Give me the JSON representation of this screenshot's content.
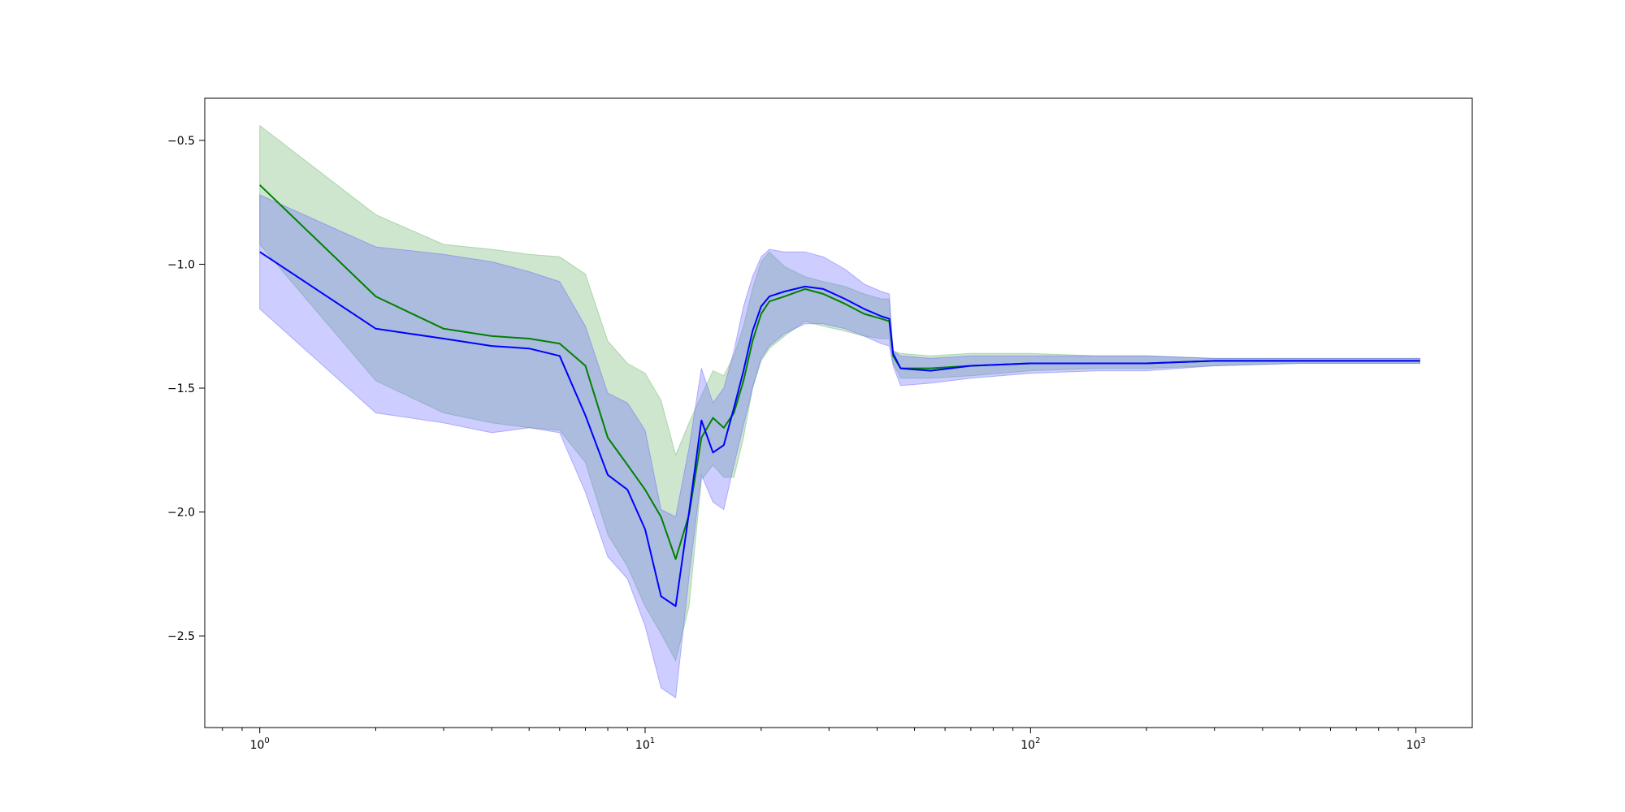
{
  "chart_data": {
    "type": "line",
    "title": "",
    "xlabel": "",
    "ylabel": "",
    "x_scale": "log",
    "xlim": [
      0.72,
      1400
    ],
    "ylim": [
      -2.87,
      -0.33
    ],
    "grid": false,
    "legend": "none",
    "x_ticks": [
      {
        "value": 1,
        "base": "10",
        "exp": "0"
      },
      {
        "value": 10,
        "base": "10",
        "exp": "1"
      },
      {
        "value": 100,
        "base": "10",
        "exp": "2"
      },
      {
        "value": 1000,
        "base": "10",
        "exp": "3"
      }
    ],
    "y_ticks": [
      {
        "value": -0.5,
        "label": "−0.5"
      },
      {
        "value": -1.0,
        "label": "−1.0"
      },
      {
        "value": -1.5,
        "label": "−1.5"
      },
      {
        "value": -2.0,
        "label": "−2.0"
      },
      {
        "value": -2.5,
        "label": "−2.5"
      }
    ],
    "x": [
      1,
      2,
      3,
      4,
      5,
      6,
      7,
      8,
      9,
      10,
      11,
      12,
      13,
      14,
      15,
      16,
      17,
      18,
      19,
      20,
      21,
      23,
      26,
      29,
      33,
      37,
      41,
      43,
      44,
      46,
      55,
      70,
      100,
      150,
      200,
      300,
      500,
      1024
    ],
    "series": [
      {
        "color": "#008000",
        "band_color": "#6ab46a",
        "values": [
          -0.68,
          -1.13,
          -1.26,
          -1.29,
          -1.3,
          -1.32,
          -1.41,
          -1.7,
          -1.81,
          -1.91,
          -2.02,
          -2.19,
          -2.01,
          -1.7,
          -1.62,
          -1.66,
          -1.6,
          -1.47,
          -1.31,
          -1.2,
          -1.15,
          -1.13,
          -1.1,
          -1.12,
          -1.16,
          -1.2,
          -1.22,
          -1.23,
          -1.37,
          -1.42,
          -1.42,
          -1.41,
          -1.4,
          -1.4,
          -1.4,
          -1.39,
          -1.39,
          -1.39
        ],
        "upper": [
          -0.44,
          -0.8,
          -0.92,
          -0.94,
          -0.96,
          -0.97,
          -1.04,
          -1.31,
          -1.4,
          -1.44,
          -1.55,
          -1.77,
          -1.64,
          -1.53,
          -1.43,
          -1.45,
          -1.37,
          -1.25,
          -1.1,
          -0.99,
          -0.95,
          -1.01,
          -1.05,
          -1.07,
          -1.09,
          -1.12,
          -1.14,
          -1.14,
          -1.35,
          -1.36,
          -1.37,
          -1.36,
          -1.36,
          -1.37,
          -1.37,
          -1.38,
          -1.38,
          -1.38
        ],
        "lower": [
          -0.92,
          -1.47,
          -1.6,
          -1.64,
          -1.66,
          -1.67,
          -1.8,
          -2.09,
          -2.22,
          -2.38,
          -2.49,
          -2.6,
          -2.38,
          -1.87,
          -1.81,
          -1.86,
          -1.86,
          -1.7,
          -1.5,
          -1.39,
          -1.34,
          -1.29,
          -1.23,
          -1.25,
          -1.27,
          -1.29,
          -1.3,
          -1.3,
          -1.4,
          -1.46,
          -1.46,
          -1.45,
          -1.43,
          -1.42,
          -1.42,
          -1.41,
          -1.4,
          -1.4
        ]
      },
      {
        "color": "#0000ff",
        "band_color": "#6666ff",
        "values": [
          -0.95,
          -1.26,
          -1.3,
          -1.33,
          -1.34,
          -1.37,
          -1.61,
          -1.85,
          -1.91,
          -2.07,
          -2.34,
          -2.38,
          -2.0,
          -1.63,
          -1.76,
          -1.73,
          -1.58,
          -1.43,
          -1.27,
          -1.17,
          -1.13,
          -1.11,
          -1.09,
          -1.1,
          -1.14,
          -1.18,
          -1.21,
          -1.22,
          -1.36,
          -1.42,
          -1.43,
          -1.41,
          -1.4,
          -1.4,
          -1.4,
          -1.39,
          -1.39,
          -1.39
        ],
        "upper": [
          -0.72,
          -0.93,
          -0.96,
          -0.99,
          -1.03,
          -1.07,
          -1.25,
          -1.52,
          -1.56,
          -1.67,
          -1.99,
          -2.02,
          -1.74,
          -1.42,
          -1.56,
          -1.5,
          -1.35,
          -1.17,
          -1.05,
          -0.97,
          -0.94,
          -0.95,
          -0.95,
          -0.97,
          -1.02,
          -1.08,
          -1.11,
          -1.12,
          -1.35,
          -1.37,
          -1.38,
          -1.37,
          -1.37,
          -1.37,
          -1.37,
          -1.38,
          -1.38,
          -1.38
        ],
        "lower": [
          -1.18,
          -1.6,
          -1.64,
          -1.68,
          -1.66,
          -1.68,
          -1.92,
          -2.18,
          -2.27,
          -2.46,
          -2.71,
          -2.75,
          -2.26,
          -1.85,
          -1.96,
          -1.99,
          -1.81,
          -1.65,
          -1.5,
          -1.38,
          -1.33,
          -1.28,
          -1.24,
          -1.24,
          -1.26,
          -1.29,
          -1.32,
          -1.33,
          -1.41,
          -1.49,
          -1.48,
          -1.46,
          -1.44,
          -1.43,
          -1.43,
          -1.41,
          -1.4,
          -1.4
        ]
      }
    ]
  }
}
